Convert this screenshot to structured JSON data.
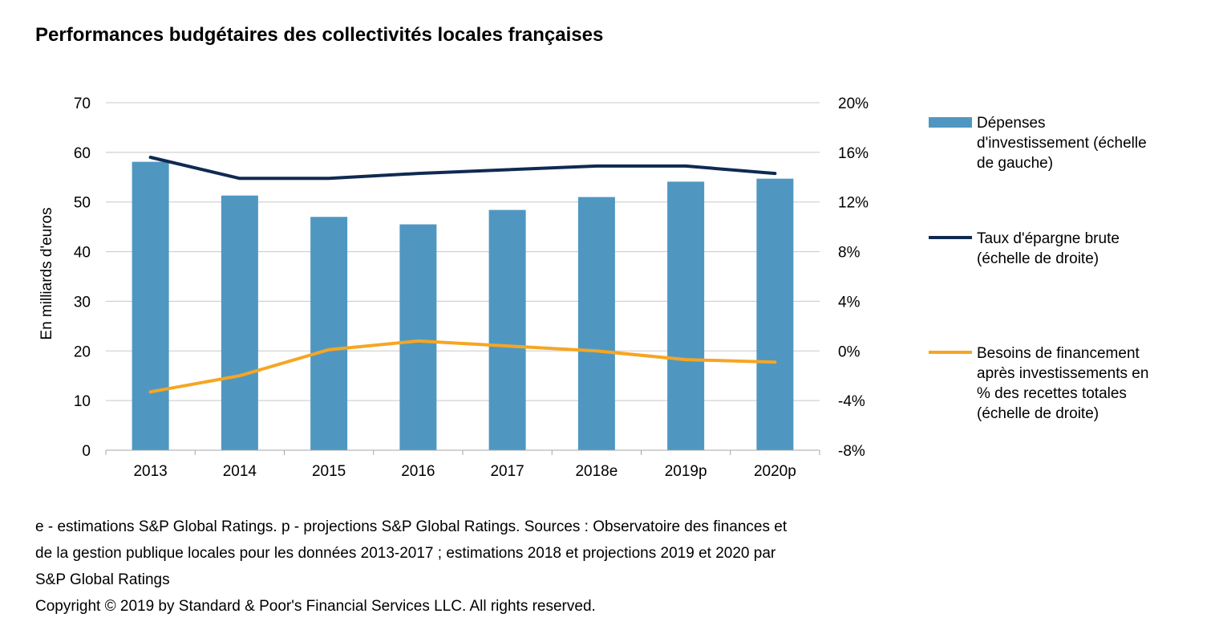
{
  "title": "Performances budgétaires des collectivités locales françaises",
  "chart_data": {
    "type": "bar",
    "categories": [
      "2013",
      "2014",
      "2015",
      "2016",
      "2017",
      "2018e",
      "2019p",
      "2020p"
    ],
    "series": [
      {
        "name": "Dépenses d'investissement (échelle de gauche)",
        "legend_lines": [
          "Dépenses",
          "d'investissement (échelle",
          "de gauche)"
        ],
        "type": "bar",
        "axis": "left",
        "color": "#4f97c1",
        "values": [
          58.1,
          51.3,
          47.0,
          45.5,
          48.4,
          51.0,
          54.1,
          54.7
        ]
      },
      {
        "name": "Taux d'épargne brute (échelle de droite)",
        "legend_lines": [
          "Taux d'épargne brute",
          "(échelle de droite)"
        ],
        "type": "line",
        "axis": "right",
        "color": "#0f2a52",
        "values": [
          15.6,
          13.9,
          13.9,
          14.3,
          14.6,
          14.9,
          14.9,
          14.3
        ]
      },
      {
        "name": "Besoins de financement après investissements en % des recettes totales (échelle de droite)",
        "legend_lines": [
          "Besoins de financement",
          "après investissements en",
          "% des recettes totales",
          "(échelle de droite)"
        ],
        "type": "line",
        "axis": "right",
        "color": "#f5a623",
        "values": [
          -3.3,
          -2.0,
          0.1,
          0.8,
          0.4,
          0.0,
          -0.7,
          -0.9
        ]
      }
    ],
    "left_axis": {
      "label": "En milliards d'euros",
      "min": 0,
      "max": 70,
      "ticks": [
        "0",
        "10",
        "20",
        "30",
        "40",
        "50",
        "60",
        "70"
      ]
    },
    "right_axis": {
      "label": "",
      "min": -8,
      "max": 20,
      "ticks": [
        "-8%",
        "-4%",
        "0%",
        "4%",
        "8%",
        "12%",
        "16%",
        "20%"
      ]
    },
    "grid": true,
    "legend_position": "right"
  },
  "footnote": [
    "e - estimations S&P Global Ratings. p - projections S&P Global Ratings. Sources : Observatoire des finances et",
    "de la gestion publique locales pour les données 2013-2017 ; estimations 2018 et projections 2019 et 2020 par",
    "S&P Global Ratings",
    "Copyright © 2019 by Standard & Poor's Financial Services LLC. All rights reserved."
  ]
}
